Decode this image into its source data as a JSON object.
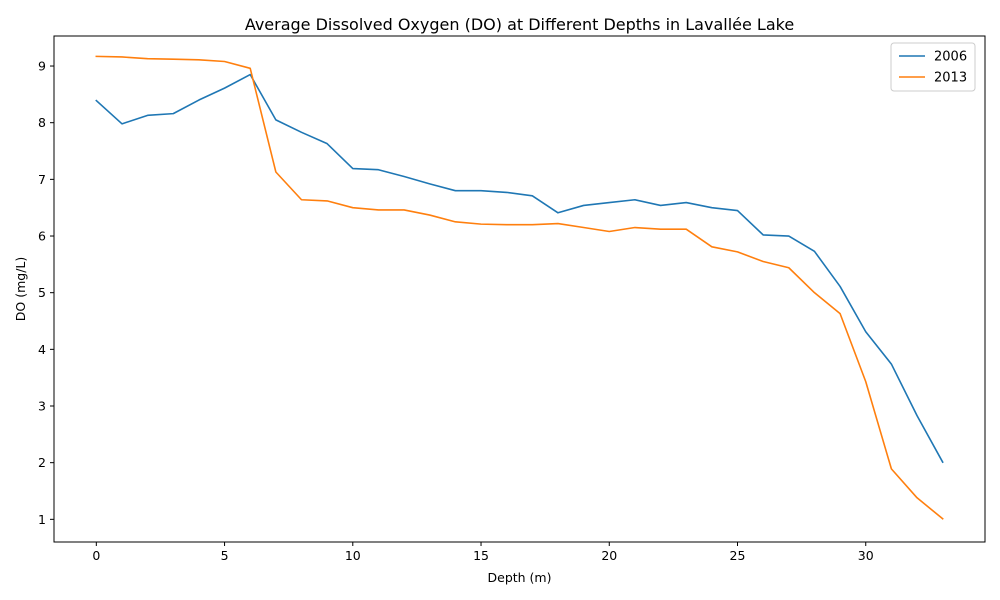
{
  "chart_data": {
    "type": "line",
    "title": "Average Dissolved Oxygen (DO) at Different Depths in Lavallée Lake",
    "xlabel": "Depth (m)",
    "ylabel": "DO (mg/L)",
    "x": [
      0,
      1,
      2,
      3,
      4,
      5,
      6,
      7,
      8,
      9,
      10,
      11,
      12,
      13,
      14,
      15,
      16,
      17,
      18,
      19,
      20,
      21,
      22,
      23,
      24,
      25,
      26,
      27,
      28,
      29,
      30,
      31,
      32,
      33
    ],
    "xlim": [
      -1.65,
      34.65
    ],
    "ylim": [
      0.6,
      9.53
    ],
    "xticks": [
      0,
      5,
      10,
      15,
      20,
      25,
      30
    ],
    "yticks": [
      1,
      2,
      3,
      4,
      5,
      6,
      7,
      8,
      9
    ],
    "grid": false,
    "legend_position": "top-right",
    "series": [
      {
        "name": "2006",
        "color": "#1f77b4",
        "values": [
          8.39,
          7.98,
          8.13,
          8.16,
          8.4,
          8.61,
          8.85,
          8.05,
          7.83,
          7.63,
          7.19,
          7.17,
          7.05,
          6.92,
          6.8,
          6.8,
          6.77,
          6.71,
          6.41,
          6.54,
          6.59,
          6.64,
          6.54,
          6.59,
          6.5,
          6.45,
          6.02,
          6.0,
          5.73,
          5.11,
          4.31,
          3.74,
          2.83,
          2.01
        ]
      },
      {
        "name": "2013",
        "color": "#ff7f0e",
        "values": [
          9.17,
          9.16,
          9.13,
          9.12,
          9.11,
          9.08,
          8.96,
          7.13,
          6.64,
          6.62,
          6.5,
          6.46,
          6.46,
          6.37,
          6.25,
          6.21,
          6.2,
          6.2,
          6.22,
          6.15,
          6.08,
          6.15,
          6.12,
          6.12,
          5.81,
          5.72,
          5.55,
          5.44,
          5.0,
          4.63,
          3.43,
          1.89,
          1.38,
          1.01
        ]
      }
    ]
  }
}
